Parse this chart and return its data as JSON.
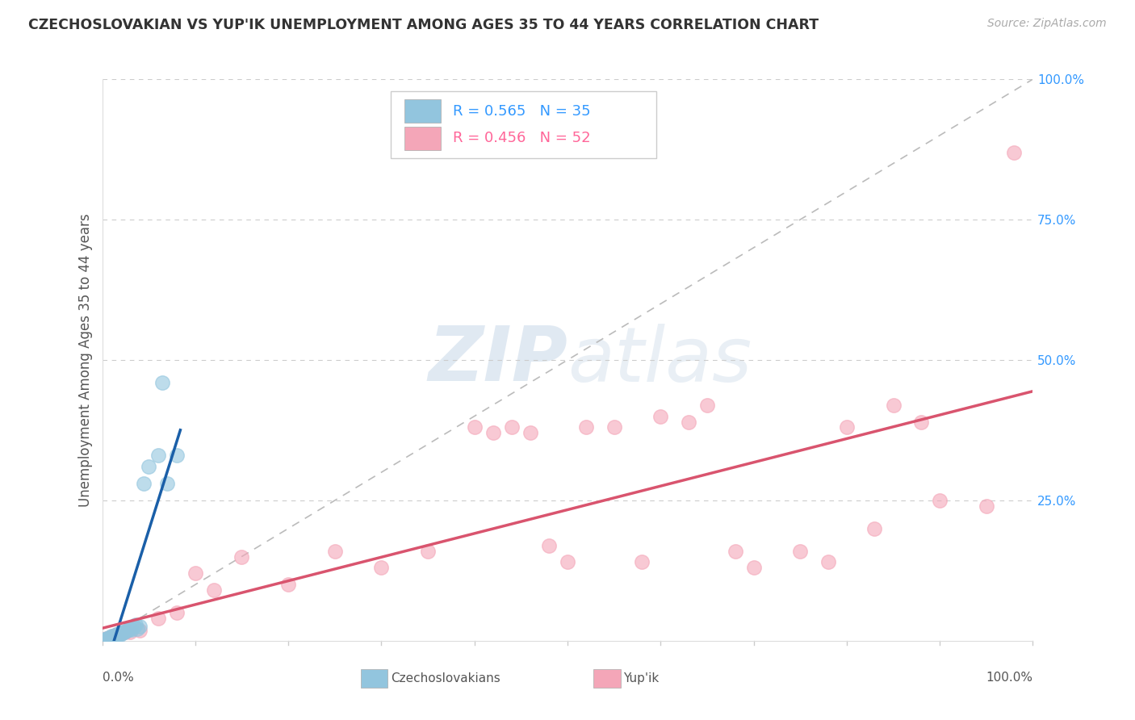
{
  "title": "CZECHOSLOVAKIAN VS YUP'IK UNEMPLOYMENT AMONG AGES 35 TO 44 YEARS CORRELATION CHART",
  "source": "Source: ZipAtlas.com",
  "ylabel": "Unemployment Among Ages 35 to 44 years",
  "legend_blue_r": "R = 0.565",
  "legend_blue_n": "N = 35",
  "legend_pink_r": "R = 0.456",
  "legend_pink_n": "N = 52",
  "legend_label_blue": "Czechoslovakians",
  "legend_label_pink": "Yup'ik",
  "blue_color": "#92c5de",
  "pink_color": "#f4a6b8",
  "blue_line_color": "#1a5fa8",
  "pink_line_color": "#d9546e",
  "ytick_labels": [
    "",
    "25.0%",
    "50.0%",
    "75.0%",
    "100.0%"
  ],
  "ytick_vals": [
    0.0,
    0.25,
    0.5,
    0.75,
    1.0
  ],
  "blue_x": [
    0.002,
    0.003,
    0.004,
    0.005,
    0.006,
    0.007,
    0.008,
    0.009,
    0.01,
    0.011,
    0.012,
    0.013,
    0.014,
    0.015,
    0.016,
    0.017,
    0.018,
    0.019,
    0.02,
    0.022,
    0.024,
    0.026,
    0.028,
    0.03,
    0.032,
    0.034,
    0.036,
    0.038,
    0.04,
    0.045,
    0.05,
    0.06,
    0.065,
    0.07,
    0.08
  ],
  "blue_y": [
    0.001,
    0.002,
    0.003,
    0.004,
    0.003,
    0.005,
    0.006,
    0.004,
    0.008,
    0.006,
    0.009,
    0.007,
    0.01,
    0.012,
    0.008,
    0.011,
    0.013,
    0.01,
    0.015,
    0.014,
    0.016,
    0.018,
    0.02,
    0.022,
    0.02,
    0.025,
    0.028,
    0.022,
    0.026,
    0.28,
    0.31,
    0.33,
    0.46,
    0.28,
    0.33
  ],
  "pink_x": [
    0.002,
    0.003,
    0.004,
    0.005,
    0.006,
    0.007,
    0.008,
    0.009,
    0.01,
    0.011,
    0.012,
    0.013,
    0.014,
    0.015,
    0.016,
    0.018,
    0.02,
    0.025,
    0.03,
    0.04,
    0.06,
    0.08,
    0.1,
    0.12,
    0.15,
    0.2,
    0.25,
    0.3,
    0.35,
    0.4,
    0.42,
    0.44,
    0.46,
    0.48,
    0.5,
    0.52,
    0.55,
    0.58,
    0.6,
    0.63,
    0.65,
    0.68,
    0.7,
    0.75,
    0.78,
    0.8,
    0.83,
    0.85,
    0.88,
    0.9,
    0.95,
    0.98
  ],
  "pink_y": [
    0.001,
    0.002,
    0.003,
    0.004,
    0.003,
    0.005,
    0.005,
    0.006,
    0.007,
    0.006,
    0.008,
    0.008,
    0.01,
    0.01,
    0.012,
    0.011,
    0.014,
    0.015,
    0.016,
    0.018,
    0.04,
    0.05,
    0.12,
    0.09,
    0.15,
    0.1,
    0.16,
    0.13,
    0.16,
    0.38,
    0.37,
    0.38,
    0.37,
    0.17,
    0.14,
    0.38,
    0.38,
    0.14,
    0.4,
    0.39,
    0.42,
    0.16,
    0.13,
    0.16,
    0.14,
    0.38,
    0.2,
    0.42,
    0.39,
    0.25,
    0.24,
    0.87
  ]
}
